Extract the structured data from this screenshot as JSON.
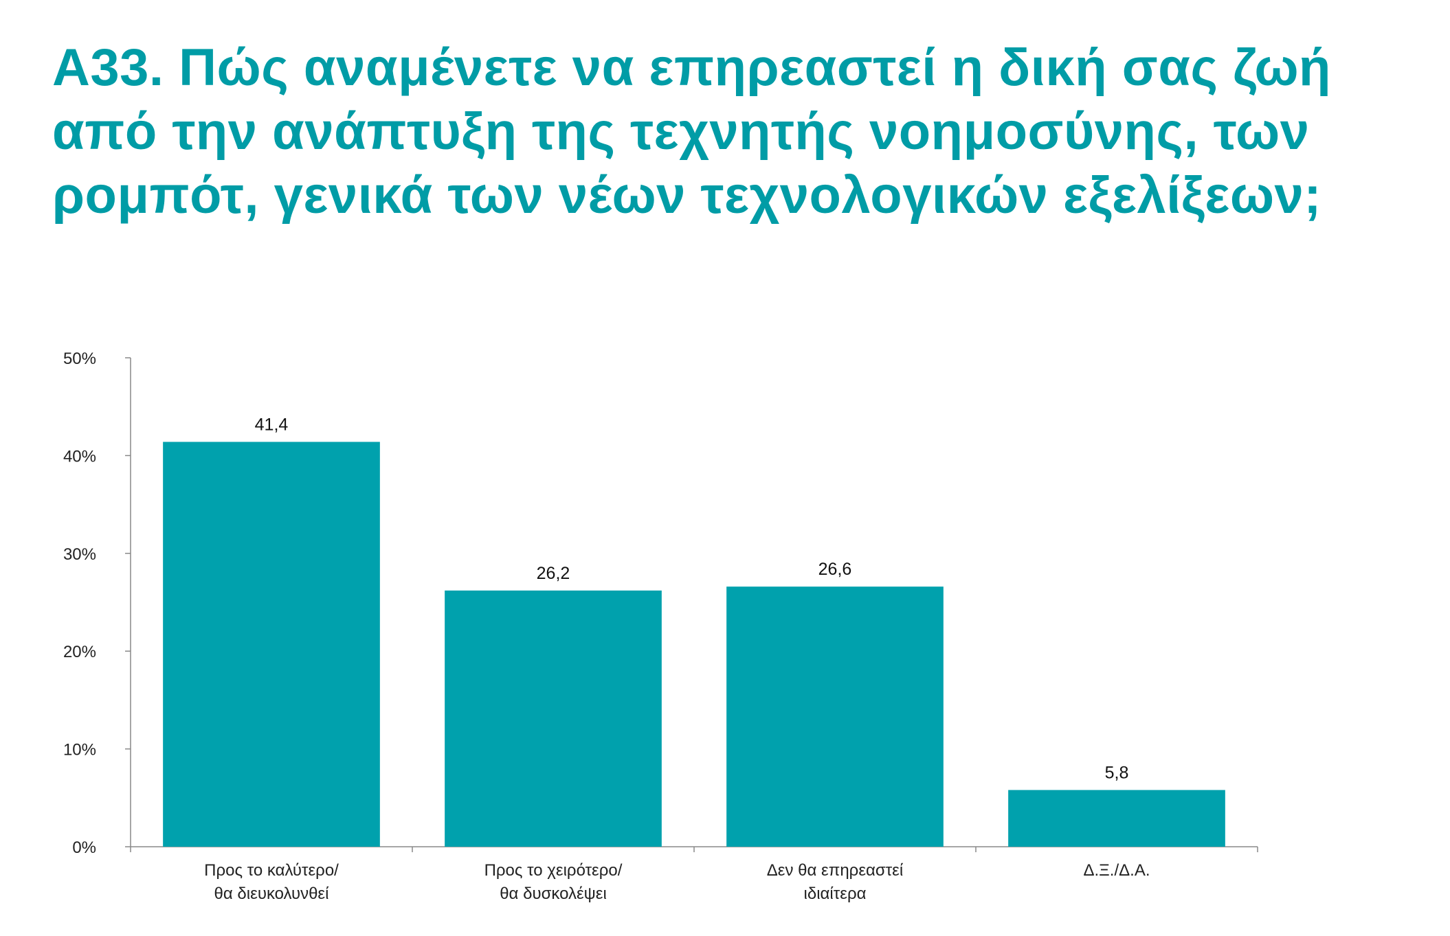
{
  "title_lines": [
    "Α33. Πώς αναμένετε να επηρεαστεί η δική σας ζωή",
    "από την ανάπτυξη της τεχνητής νοημοσύνης, των",
    "ρομπότ, γενικά των νέων τεχνολογικών εξελίξεων;"
  ],
  "colors": {
    "accent": "#009ca6",
    "bar": "#00a1ad",
    "axis": "#888888",
    "text": "#222222"
  },
  "chart_data": {
    "type": "bar",
    "title": "Α33. Πώς αναμένετε να επηρεαστεί η δική σας ζωή από την ανάπτυξη της τεχνητής νοημοσύνης, των ρομπότ, γενικά των νέων τεχνολογικών εξελίξεων;",
    "categories": [
      [
        "Προς το καλύτερο/",
        "θα διευκολυνθεί"
      ],
      [
        "Προς το χειρότερο/",
        "θα δυσκολέψει"
      ],
      [
        "Δεν θα επηρεαστεί",
        "ιδιαίτερα"
      ],
      [
        "Δ.Ξ./Δ.Α."
      ]
    ],
    "values": [
      41.4,
      26.2,
      26.6,
      5.8
    ],
    "value_labels": [
      "41,4",
      "26,2",
      "26,6",
      "5,8"
    ],
    "ylim": [
      0,
      50
    ],
    "yticks": [
      0,
      10,
      20,
      30,
      40,
      50
    ],
    "ytick_labels": [
      "0%",
      "10%",
      "20%",
      "30%",
      "40%",
      "50%"
    ],
    "xlabel": "",
    "ylabel": "",
    "grid": false,
    "legend": false
  }
}
